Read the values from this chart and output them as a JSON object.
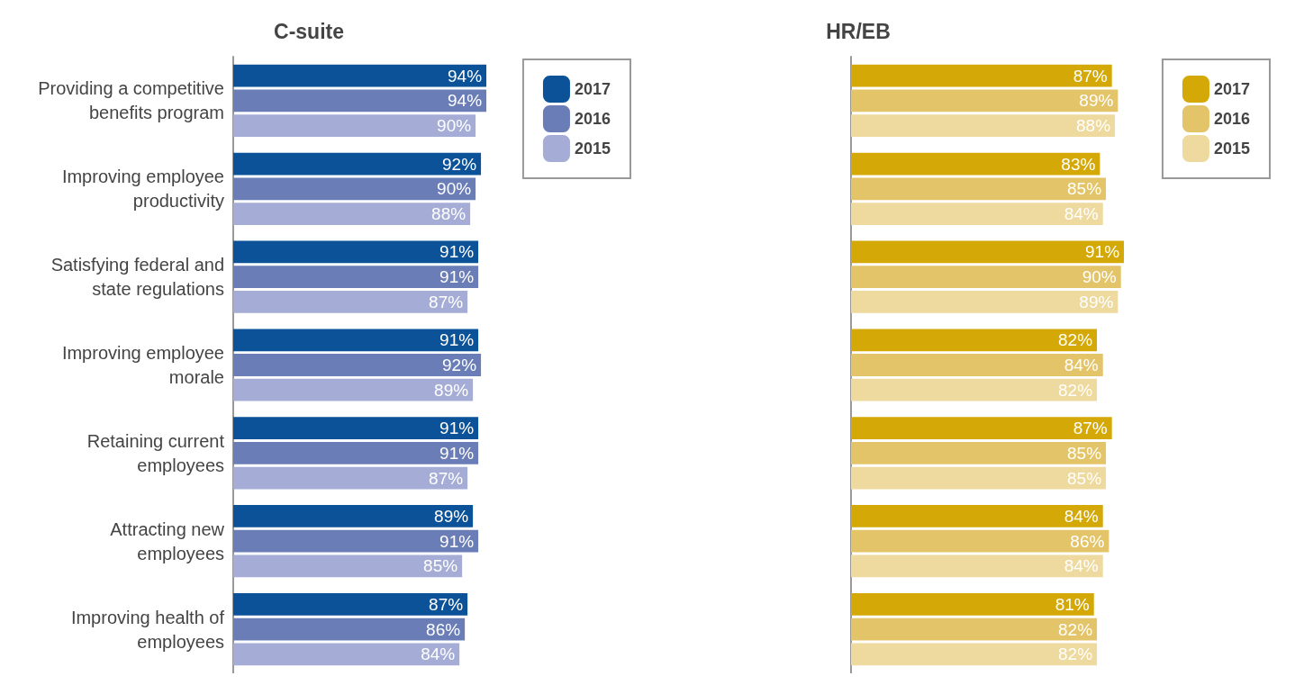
{
  "chart_data": [
    {
      "type": "bar",
      "orientation": "horizontal",
      "title": "C-suite",
      "categories": [
        "Providing a competitive benefits program",
        "Improving employee productivity",
        "Satisfying federal and state regulations",
        "Improving employee morale",
        "Retaining current employees",
        "Attracting new employees",
        "Improving health of employees"
      ],
      "series": [
        {
          "name": "2017",
          "color": "#0b5299",
          "values": [
            94,
            92,
            91,
            91,
            91,
            89,
            87
          ],
          "value_labels": [
            "94%",
            "92%",
            "91%",
            "91%",
            "91%",
            "89%",
            "87%"
          ]
        },
        {
          "name": "2016",
          "color": "#6a7db7",
          "values": [
            94,
            90,
            91,
            92,
            91,
            91,
            86
          ],
          "value_labels": [
            "94%",
            "90%",
            "91%",
            "92%",
            "91%",
            "91%",
            "86%"
          ]
        },
        {
          "name": "2015",
          "color": "#a5add6",
          "values": [
            90,
            88,
            87,
            89,
            87,
            85,
            84
          ],
          "value_labels": [
            "90%",
            "88%",
            "87%",
            "89%",
            "87%",
            "85%",
            "84%"
          ]
        }
      ],
      "legend": "top right",
      "tick_labels": "y"
    },
    {
      "type": "bar",
      "orientation": "horizontal",
      "title": "HR/EB",
      "categories": [
        null,
        null,
        null,
        null,
        null,
        null,
        null
      ],
      "series": [
        {
          "name": "2017",
          "color": "#d4a806",
          "values": [
            87,
            83,
            91,
            82,
            87,
            84,
            81
          ],
          "value_labels": [
            "87%",
            "83%",
            "91%",
            "82%",
            "87%",
            "84%",
            "81%"
          ]
        },
        {
          "name": "2016",
          "color": "#e3c469",
          "values": [
            89,
            85,
            90,
            84,
            85,
            86,
            82
          ],
          "value_labels": [
            "89%",
            "85%",
            "90%",
            "84%",
            "85%",
            "86%",
            "82%"
          ]
        },
        {
          "name": "2015",
          "color": "#eed99e",
          "values": [
            88,
            84,
            89,
            82,
            85,
            84,
            82
          ],
          "value_labels": [
            "88%",
            "84%",
            "89%",
            "82%",
            "85%",
            "84%",
            "82%"
          ]
        }
      ],
      "legend": "top right",
      "tick_labels": false
    }
  ]
}
